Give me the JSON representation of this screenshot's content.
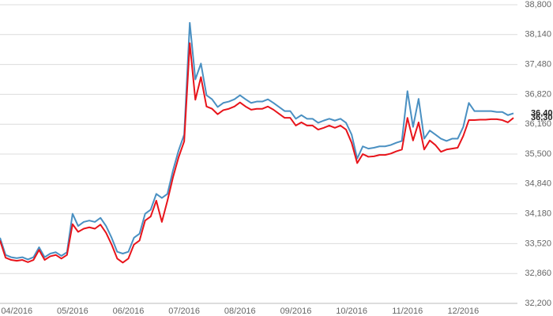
{
  "chart_data": {
    "type": "line",
    "categories": [
      null,
      null,
      null,
      "04/2016",
      null,
      null,
      null,
      null,
      null,
      null,
      null,
      null,
      null,
      "05/2016",
      null,
      null,
      null,
      null,
      null,
      null,
      null,
      null,
      null,
      "06/2016",
      null,
      null,
      null,
      null,
      null,
      null,
      null,
      null,
      null,
      "07/2016",
      null,
      null,
      null,
      null,
      null,
      null,
      null,
      null,
      null,
      "08/2016",
      null,
      null,
      null,
      null,
      null,
      null,
      null,
      null,
      null,
      "09/2016",
      null,
      null,
      null,
      null,
      null,
      null,
      null,
      null,
      null,
      "10/2016",
      null,
      null,
      null,
      null,
      null,
      null,
      null,
      null,
      null,
      "11/2016",
      null,
      null,
      null,
      null,
      null,
      null,
      null,
      null,
      null,
      "12/2016",
      null,
      null,
      null,
      null,
      null,
      null,
      null,
      null,
      null
    ],
    "series": [
      {
        "color": "#4a90c2",
        "end_label": "36,400",
        "values": [
          33650,
          33270,
          33220,
          33200,
          33220,
          33170,
          33220,
          33440,
          33220,
          33300,
          33330,
          33250,
          33330,
          34180,
          33910,
          34000,
          34030,
          34000,
          34090,
          33910,
          33650,
          33340,
          33300,
          33340,
          33650,
          33740,
          34180,
          34270,
          34620,
          34530,
          34620,
          35140,
          35580,
          35930,
          38400,
          37150,
          37500,
          36800,
          36710,
          36540,
          36630,
          36660,
          36710,
          36800,
          36710,
          36630,
          36660,
          36660,
          36710,
          36630,
          36540,
          36450,
          36450,
          36280,
          36360,
          36280,
          36280,
          36190,
          36240,
          36280,
          36240,
          36280,
          36190,
          35930,
          35400,
          35670,
          35620,
          35640,
          35670,
          35670,
          35700,
          35750,
          35790,
          36890,
          36100,
          36720,
          35840,
          36020,
          35930,
          35840,
          35790,
          35840,
          35840,
          36100,
          36630,
          36450,
          36450,
          36450,
          36450,
          36430,
          36430,
          36360,
          36400
        ]
      },
      {
        "color": "#e8141b",
        "end_label": "36,300",
        "values": [
          33590,
          33210,
          33160,
          33140,
          33160,
          33110,
          33160,
          33380,
          33160,
          33240,
          33270,
          33190,
          33270,
          33950,
          33780,
          33850,
          33880,
          33850,
          33940,
          33760,
          33500,
          33190,
          33100,
          33190,
          33500,
          33590,
          34030,
          34120,
          34470,
          34000,
          34470,
          34990,
          35430,
          35780,
          37950,
          36700,
          37200,
          36550,
          36500,
          36380,
          36470,
          36500,
          36550,
          36640,
          36550,
          36480,
          36500,
          36500,
          36550,
          36480,
          36390,
          36300,
          36300,
          36130,
          36200,
          36130,
          36130,
          36040,
          36080,
          36130,
          36080,
          36130,
          36040,
          35750,
          35300,
          35500,
          35440,
          35450,
          35480,
          35480,
          35510,
          35560,
          35600,
          36300,
          35800,
          36200,
          35600,
          35800,
          35700,
          35550,
          35600,
          35620,
          35640,
          35900,
          36250,
          36250,
          36260,
          36260,
          36270,
          36270,
          36250,
          36200,
          36300
        ]
      }
    ],
    "ylim": [
      32200,
      38800
    ],
    "yticks": [
      {
        "value": 32200,
        "label": "32,200"
      },
      {
        "value": 32860,
        "label": "32,860"
      },
      {
        "value": 33520,
        "label": "33,520"
      },
      {
        "value": 34180,
        "label": "34,180"
      },
      {
        "value": 34840,
        "label": "34,840"
      },
      {
        "value": 35500,
        "label": "35,500"
      },
      {
        "value": 36160,
        "label": "36,160"
      },
      {
        "value": 36820,
        "label": "36,820"
      },
      {
        "value": 37480,
        "label": "37,480"
      },
      {
        "value": 38140,
        "label": "38,140"
      },
      {
        "value": 38800,
        "label": "38,800"
      }
    ],
    "grid": true
  }
}
